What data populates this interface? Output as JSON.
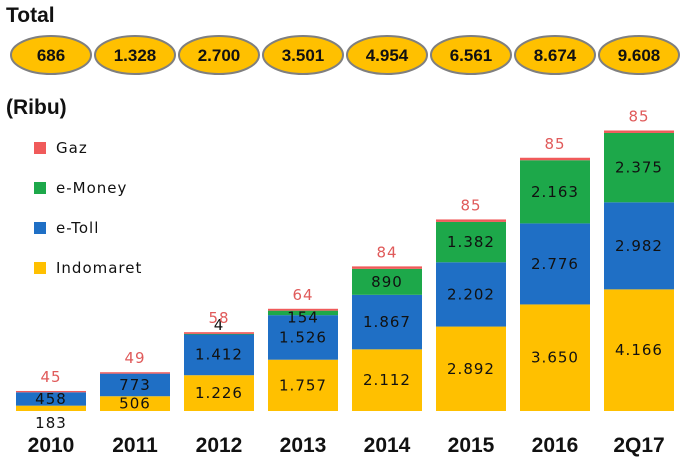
{
  "header": {
    "title": "Total",
    "unit": "(Ribu)"
  },
  "totals": [
    "686",
    "1.328",
    "2.700",
    "3.501",
    "4.954",
    "6.561",
    "8.674",
    "9.608"
  ],
  "colors": {
    "Indomaret": "#FFC000",
    "e-Toll": "#1F6FC5",
    "e-Money": "#1DA84A",
    "Gaz": "#F05A5A",
    "pill_fill": "#FFC000",
    "pill_border": "#7F7F7F"
  },
  "chart_data": {
    "type": "bar",
    "stacked": true,
    "categories": [
      "2010",
      "2011",
      "2012",
      "2013",
      "2014",
      "2015",
      "2016",
      "2Q17"
    ],
    "series": [
      {
        "name": "Indomaret",
        "values": [
          183,
          506,
          1226,
          1757,
          2112,
          2892,
          3650,
          4166
        ],
        "labels": [
          "183",
          "506",
          "1.226",
          "1.757",
          "2.112",
          "2.892",
          "3.650",
          "4.166"
        ]
      },
      {
        "name": "e-Toll",
        "values": [
          458,
          773,
          1412,
          1526,
          1867,
          2202,
          2776,
          2982
        ],
        "labels": [
          "458",
          "773",
          "1.412",
          "1.526",
          "1.867",
          "2.202",
          "2.776",
          "2.982"
        ]
      },
      {
        "name": "e-Money",
        "values": [
          0,
          0,
          4,
          154,
          890,
          1382,
          2163,
          2375
        ],
        "labels": [
          "",
          "",
          "4",
          "154",
          "890",
          "1.382",
          "2.163",
          "2.375"
        ]
      },
      {
        "name": "Gaz",
        "values": [
          45,
          49,
          58,
          64,
          84,
          85,
          85,
          85
        ],
        "labels": [
          "45",
          "49",
          "58",
          "64",
          "84",
          "85",
          "85",
          "85"
        ]
      }
    ],
    "legend": [
      "Gaz",
      "e-Money",
      "e-Toll",
      "Indomaret"
    ],
    "legend_position": "top-left",
    "ylim": [
      0,
      9700
    ],
    "grid": false,
    "xlabel": "",
    "ylabel": ""
  }
}
